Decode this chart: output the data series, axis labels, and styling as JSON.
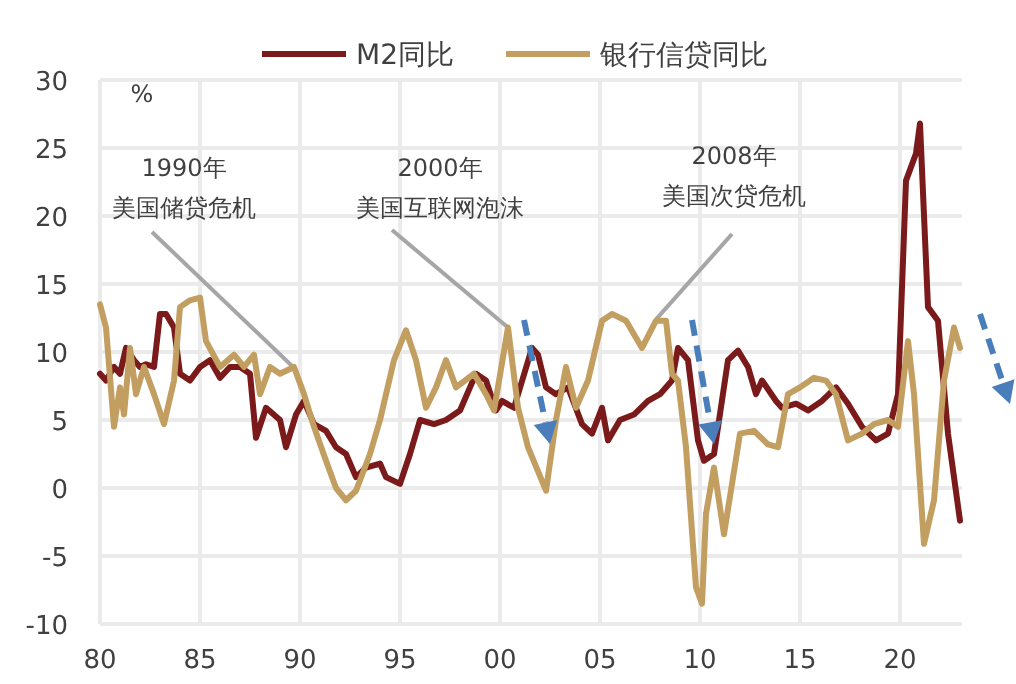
{
  "chart_data": {
    "type": "line",
    "ylabel": "%",
    "legend": "top",
    "grid": true,
    "xlim": [
      1980,
      2023.1
    ],
    "ylim": [
      -10,
      30
    ],
    "xticks": [
      {
        "value": 1980,
        "label": "80"
      },
      {
        "value": 1985,
        "label": "85"
      },
      {
        "value": 1990,
        "label": "90"
      },
      {
        "value": 1995,
        "label": "95"
      },
      {
        "value": 2000,
        "label": "00"
      },
      {
        "value": 2005,
        "label": "05"
      },
      {
        "value": 2010,
        "label": "10"
      },
      {
        "value": 2015,
        "label": "15"
      },
      {
        "value": 2020,
        "label": "20"
      }
    ],
    "yticks": [
      -10,
      -5,
      0,
      5,
      10,
      15,
      20,
      25,
      30
    ],
    "annotations": [
      "1990年",
      {
        "text": "美国储贷危机",
        "x": 1989.8,
        "y": 8.7
      },
      "2000年",
      {
        "text": "美国互联网泡沫",
        "x": 2000.4,
        "y": 11.8
      },
      "2008年",
      {
        "text": "美国次贷危机",
        "x": 2007.8,
        "y": 12.4
      }
    ],
    "series": [
      {
        "name": "M2同比",
        "color": "#7b1a1a",
        "x": [
          1980,
          1980.3,
          1980.7,
          1981,
          1981.3,
          1981.7,
          1982,
          1982.3,
          1982.7,
          1983,
          1983.3,
          1983.7,
          1984,
          1984.5,
          1985,
          1985.5,
          1986,
          1986.5,
          1987,
          1987.5,
          1987.8,
          1988.3,
          1989,
          1989.3,
          1989.8,
          1990.2,
          1990.7,
          1991.3,
          1991.8,
          1992.3,
          1992.8,
          1993.3,
          1994,
          1994.3,
          1995,
          1995.5,
          1996,
          1996.7,
          1997.3,
          1998,
          1998.5,
          1998.8,
          1999.3,
          1999.8,
          2000.1,
          2000.7,
          2001.6,
          2001.9,
          2002.3,
          2002.8,
          2003.4,
          2004.1,
          2004.6,
          2005.1,
          2005.4,
          2006,
          2006.7,
          2007.4,
          2008,
          2008.6,
          2008.9,
          2009.4,
          2009.9,
          2010.2,
          2010.7,
          2011.4,
          2011.9,
          2012.4,
          2012.8,
          2013.1,
          2013.8,
          2014.1,
          2014.8,
          2015.4,
          2016.1,
          2016.8,
          2017.4,
          2018.1,
          2018.8,
          2019.4,
          2019.9,
          2020.3,
          2020.8,
          2021,
          2021.4,
          2021.9,
          2022.4,
          2023
        ],
        "values": [
          8.4,
          7.9,
          8.9,
          8.4,
          10.3,
          9.4,
          8.9,
          9.1,
          8.9,
          12.8,
          12.8,
          11.8,
          8.4,
          7.9,
          8.9,
          9.4,
          8.1,
          8.9,
          8.9,
          8.4,
          3.7,
          5.9,
          5.0,
          3.0,
          5.4,
          6.4,
          4.7,
          4.2,
          3.0,
          2.5,
          0.8,
          1.5,
          1.8,
          0.8,
          0.3,
          2.5,
          5.0,
          4.7,
          5.0,
          5.7,
          7.4,
          8.4,
          7.9,
          5.7,
          6.4,
          5.9,
          10.3,
          9.8,
          7.4,
          6.9,
          7.4,
          4.7,
          4.0,
          5.9,
          3.5,
          5.0,
          5.4,
          6.4,
          6.9,
          7.9,
          10.3,
          9.4,
          3.5,
          2.0,
          2.5,
          9.4,
          10.1,
          8.9,
          6.9,
          7.9,
          6.4,
          5.9,
          6.2,
          5.7,
          6.4,
          7.4,
          6.2,
          4.5,
          3.5,
          4.0,
          6.9,
          22.6,
          24.6,
          26.8,
          13.3,
          12.3,
          4.0,
          -2.4
        ]
      },
      {
        "name": "银行信贷同比",
        "color": "#c29e60",
        "x": [
          1980,
          1980.3,
          1980.7,
          1981,
          1981.2,
          1981.5,
          1981.8,
          1982.2,
          1982.7,
          1983.2,
          1983.7,
          1984,
          1984.5,
          1985,
          1985.3,
          1986,
          1986.7,
          1987.2,
          1987.7,
          1988,
          1988.5,
          1989,
          1989.7,
          1990.2,
          1990.7,
          1991.3,
          1991.8,
          1992.3,
          1992.8,
          1993.5,
          1994,
          1994.7,
          1995.3,
          1995.8,
          1996.3,
          1996.8,
          1997.3,
          1997.8,
          1998.7,
          1999.3,
          1999.7,
          2000.4,
          2000.9,
          2001.4,
          2002.3,
          2002.8,
          2003.3,
          2003.8,
          2004.4,
          2005.1,
          2005.6,
          2006.3,
          2007.1,
          2007.8,
          2008.3,
          2008.6,
          2008.9,
          2009.3,
          2009.8,
          2010.1,
          2010.3,
          2010.7,
          2011.2,
          2012,
          2012.7,
          2013.4,
          2013.9,
          2014.4,
          2015,
          2015.7,
          2016.3,
          2016.8,
          2017.4,
          2018.1,
          2018.7,
          2019.4,
          2019.9,
          2020.4,
          2020.7,
          2021.2,
          2021.7,
          2022.2,
          2022.7,
          2023
        ],
        "values": [
          13.5,
          11.8,
          4.5,
          7.4,
          5.4,
          10.3,
          6.9,
          8.9,
          6.9,
          4.7,
          7.9,
          13.3,
          13.8,
          14.0,
          10.8,
          8.9,
          9.8,
          8.9,
          9.8,
          6.9,
          8.9,
          8.4,
          8.9,
          6.9,
          4.5,
          2.0,
          0.0,
          -0.9,
          -0.2,
          2.5,
          5.0,
          9.4,
          11.6,
          9.4,
          5.9,
          7.4,
          9.4,
          7.4,
          8.4,
          6.9,
          5.7,
          11.8,
          5.9,
          3.0,
          -0.2,
          5.0,
          8.9,
          5.9,
          7.9,
          12.3,
          12.8,
          12.3,
          10.3,
          12.3,
          12.3,
          8.4,
          7.9,
          3.0,
          -7.3,
          -8.5,
          -1.9,
          1.5,
          -3.4,
          4.0,
          4.2,
          3.2,
          3.0,
          6.9,
          7.4,
          8.1,
          7.9,
          6.9,
          3.5,
          4.0,
          4.7,
          5.0,
          4.5,
          10.8,
          6.9,
          -4.1,
          -0.9,
          7.9,
          11.8,
          10.3
        ]
      }
    ]
  }
}
